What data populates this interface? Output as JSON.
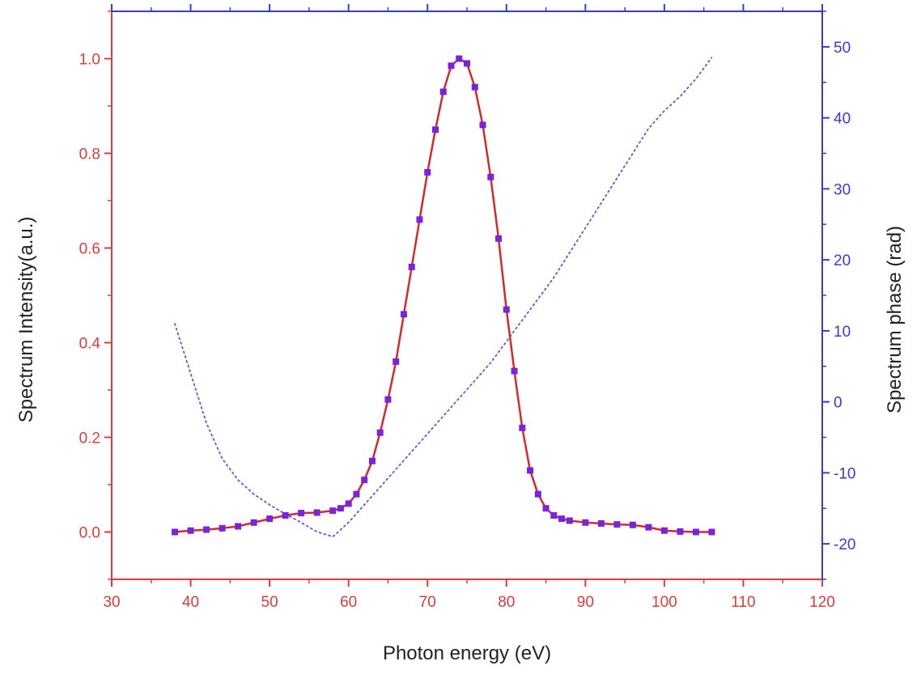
{
  "chart_data": {
    "type": "line",
    "xlabel": "Photon energy (eV)",
    "ylabel_left": "Spectrum Intensity(a.u.)",
    "ylabel_right": "Spectrum phase (rad)",
    "xlim": [
      30,
      120
    ],
    "ylim_left": [
      -0.1,
      1.1
    ],
    "ylim_right": [
      -25,
      55
    ],
    "x_ticks": [
      30,
      40,
      50,
      60,
      70,
      80,
      90,
      100,
      110,
      120
    ],
    "y_ticks_left": [
      0.0,
      0.2,
      0.4,
      0.6,
      0.8,
      1.0
    ],
    "y_ticks_right": [
      -20,
      -10,
      0,
      10,
      20,
      30,
      40,
      50
    ],
    "x_tick_labels": [
      "30",
      "40",
      "50",
      "60",
      "70",
      "80",
      "90",
      "100",
      "110",
      "120"
    ],
    "y_tick_labels_left": [
      "0.0",
      "0.2",
      "0.4",
      "0.6",
      "0.8",
      "1.0"
    ],
    "y_tick_labels_right": [
      "-20",
      "-10",
      "0",
      "10",
      "20",
      "30",
      "40",
      "50"
    ],
    "grid": false,
    "legend": "none",
    "colors": {
      "left_axis": "#e03a3a",
      "right_axis": "#3a3ad6",
      "intensity_line": "#d42a2a",
      "intensity_markers": "#7a22e0",
      "phase_line": "#5a5ad8"
    },
    "series": [
      {
        "axis": "left",
        "style": "line+markers",
        "x": [
          38,
          40,
          42,
          44,
          46,
          48,
          50,
          52,
          54,
          56,
          58,
          59,
          60,
          61,
          62,
          63,
          64,
          65,
          66,
          67,
          68,
          69,
          70,
          71,
          72,
          73,
          74,
          75,
          76,
          77,
          78,
          79,
          80,
          81,
          82,
          83,
          84,
          85,
          86,
          87,
          88,
          90,
          92,
          94,
          96,
          98,
          100,
          102,
          104,
          106
        ],
        "y": [
          0.0,
          0.003,
          0.005,
          0.008,
          0.012,
          0.02,
          0.028,
          0.035,
          0.04,
          0.041,
          0.045,
          0.05,
          0.06,
          0.08,
          0.11,
          0.15,
          0.21,
          0.28,
          0.36,
          0.46,
          0.56,
          0.66,
          0.76,
          0.85,
          0.93,
          0.985,
          1.0,
          0.99,
          0.94,
          0.86,
          0.75,
          0.62,
          0.47,
          0.34,
          0.22,
          0.13,
          0.08,
          0.05,
          0.035,
          0.028,
          0.024,
          0.02,
          0.018,
          0.016,
          0.015,
          0.01,
          0.003,
          0.001,
          0.0,
          0.0
        ]
      },
      {
        "axis": "right",
        "style": "dotted",
        "x": [
          38,
          40,
          42,
          44,
          46,
          48,
          50,
          52,
          54,
          56,
          58,
          60,
          62,
          64,
          66,
          68,
          70,
          72,
          74,
          76,
          78,
          80,
          82,
          84,
          86,
          88,
          90,
          92,
          94,
          96,
          98,
          100,
          102,
          104,
          106
        ],
        "y": [
          11,
          4,
          -3,
          -8,
          -11,
          -13,
          -14.5,
          -15.8,
          -17,
          -18.3,
          -19,
          -17,
          -14.5,
          -12,
          -9.5,
          -7,
          -4.5,
          -2,
          0.5,
          3,
          5.5,
          8.5,
          11.5,
          14.5,
          17.5,
          21,
          24.5,
          28,
          31.5,
          35,
          38.5,
          41,
          43,
          45.5,
          48.5
        ]
      }
    ]
  }
}
